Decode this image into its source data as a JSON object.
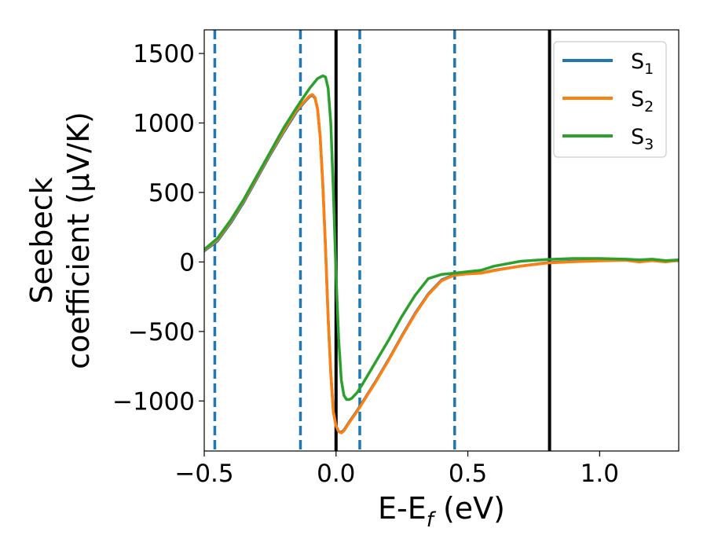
{
  "chart_data": {
    "type": "line",
    "xlabel": {
      "main": "E-E",
      "sub": "f",
      "suffix": " (eV)"
    },
    "ylabel": {
      "line1": "Seebeck",
      "line2": "coefficient  (μV/K)"
    },
    "xlim": [
      -0.5,
      1.3
    ],
    "ylim": [
      -1360,
      1670
    ],
    "xticks": [
      -0.5,
      0.0,
      0.5,
      1.0
    ],
    "xtick_labels": [
      "−0.5",
      "0.0",
      "0.5",
      "1.0"
    ],
    "yticks": [
      -1000,
      -500,
      0,
      500,
      1000,
      1500
    ],
    "ytick_labels": [
      "−1000",
      "−500",
      "0",
      "500",
      "1000",
      "1500"
    ],
    "grid": false,
    "legend_position": "top-right",
    "series": [
      {
        "name": "S",
        "sub": "1",
        "color": "#1f77b4",
        "x": [
          -0.5,
          -0.45,
          -0.4,
          -0.35,
          -0.3,
          -0.25,
          -0.2,
          -0.15,
          -0.12,
          -0.1,
          -0.09,
          -0.08,
          -0.07,
          -0.06,
          -0.05,
          -0.04,
          -0.03,
          -0.02,
          -0.01,
          0.0,
          0.01,
          0.02,
          0.03,
          0.05,
          0.08,
          0.1,
          0.15,
          0.2,
          0.25,
          0.3,
          0.35,
          0.4,
          0.45,
          0.5,
          0.55,
          0.6,
          0.7,
          0.8,
          0.9,
          1.0,
          1.1,
          1.15,
          1.2,
          1.25,
          1.3
        ],
        "y": [
          80,
          150,
          280,
          430,
          600,
          770,
          930,
          1080,
          1150,
          1190,
          1200,
          1180,
          1100,
          900,
          550,
          100,
          -400,
          -800,
          -1080,
          -1180,
          -1220,
          -1225,
          -1210,
          -1150,
          -1070,
          -1010,
          -860,
          -700,
          -530,
          -370,
          -230,
          -130,
          -90,
          -85,
          -80,
          -60,
          -30,
          -5,
          5,
          10,
          15,
          8,
          12,
          5,
          10
        ]
      },
      {
        "name": "S",
        "sub": "2",
        "color": "#ff7f0e",
        "x": [
          -0.5,
          -0.45,
          -0.4,
          -0.35,
          -0.3,
          -0.25,
          -0.2,
          -0.15,
          -0.12,
          -0.1,
          -0.09,
          -0.08,
          -0.07,
          -0.06,
          -0.05,
          -0.04,
          -0.03,
          -0.02,
          -0.01,
          0.0,
          0.01,
          0.02,
          0.03,
          0.05,
          0.08,
          0.1,
          0.15,
          0.2,
          0.25,
          0.3,
          0.35,
          0.4,
          0.45,
          0.5,
          0.55,
          0.6,
          0.7,
          0.8,
          0.9,
          1.0,
          1.1,
          1.15,
          1.2,
          1.25,
          1.3
        ],
        "y": [
          85,
          160,
          290,
          440,
          610,
          780,
          940,
          1090,
          1155,
          1195,
          1205,
          1185,
          1100,
          900,
          550,
          100,
          -400,
          -800,
          -1080,
          -1180,
          -1220,
          -1230,
          -1215,
          -1155,
          -1075,
          -1015,
          -865,
          -705,
          -535,
          -375,
          -235,
          -135,
          -95,
          -85,
          -80,
          -62,
          -30,
          -8,
          2,
          8,
          12,
          0,
          10,
          0,
          12
        ]
      },
      {
        "name": "S",
        "sub": "3",
        "color": "#2ca02c",
        "x": [
          -0.5,
          -0.45,
          -0.4,
          -0.35,
          -0.3,
          -0.25,
          -0.2,
          -0.15,
          -0.1,
          -0.07,
          -0.05,
          -0.04,
          -0.03,
          -0.02,
          -0.01,
          0.0,
          0.01,
          0.02,
          0.03,
          0.04,
          0.05,
          0.06,
          0.07,
          0.08,
          0.1,
          0.15,
          0.2,
          0.25,
          0.3,
          0.35,
          0.4,
          0.45,
          0.5,
          0.55,
          0.6,
          0.7,
          0.8,
          0.9,
          1.0,
          1.1,
          1.15,
          1.2,
          1.25,
          1.3
        ],
        "y": [
          90,
          170,
          300,
          450,
          620,
          790,
          960,
          1110,
          1250,
          1320,
          1340,
          1330,
          1250,
          1000,
          500,
          -100,
          -550,
          -850,
          -960,
          -990,
          -990,
          -980,
          -960,
          -940,
          -880,
          -720,
          -560,
          -390,
          -240,
          -120,
          -90,
          -80,
          -70,
          -60,
          -30,
          5,
          18,
          25,
          25,
          20,
          15,
          20,
          10,
          15
        ]
      }
    ],
    "vlines": [
      {
        "x": -0.46,
        "style": "dashed",
        "color": "#1f77b4"
      },
      {
        "x": -0.135,
        "style": "dashed",
        "color": "#1f77b4"
      },
      {
        "x": 0.09,
        "style": "dashed",
        "color": "#1f77b4"
      },
      {
        "x": 0.45,
        "style": "dashed",
        "color": "#1f77b4"
      },
      {
        "x": 0.0,
        "style": "solid",
        "color": "#000000"
      },
      {
        "x": 0.81,
        "style": "solid",
        "color": "#000000"
      }
    ]
  }
}
